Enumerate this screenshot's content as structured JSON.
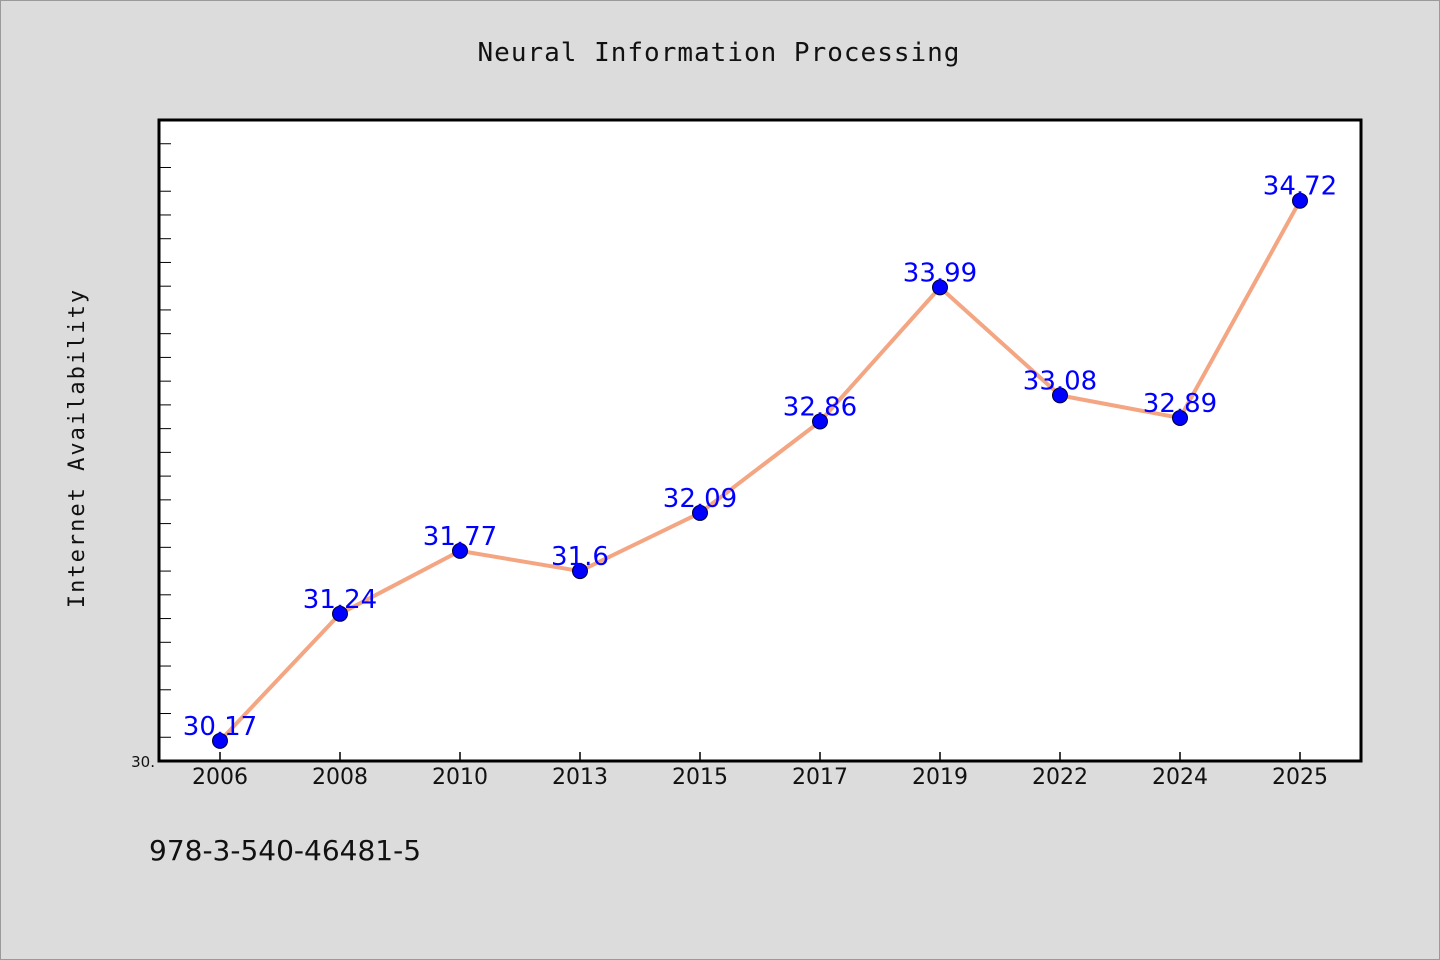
{
  "chart_data": {
    "type": "line",
    "title": "Neural Information Processing",
    "ylabel": "Internet Availability",
    "xlabel": "",
    "categories": [
      "2006",
      "2008",
      "2010",
      "2013",
      "2015",
      "2017",
      "2019",
      "2022",
      "2024",
      "2025"
    ],
    "series": [
      {
        "values": [
          30.17,
          31.24,
          31.77,
          31.6,
          32.09,
          32.86,
          33.99,
          33.08,
          32.89,
          34.72
        ],
        "labels": [
          "30.17",
          "31.24",
          "31.77",
          "31.6",
          "32.09",
          "32.86",
          "33.99",
          "33.08",
          "32.89",
          "34.72"
        ],
        "line_color": "#f4a582",
        "marker_color": "#0000ff",
        "label_color": "#0000ff"
      }
    ],
    "ylim": [
      30.0,
      35.4
    ],
    "ytick_labels": [
      {
        "value": 30.0,
        "label": "30."
      }
    ],
    "grid": false,
    "legend": "none",
    "plot_background": "#ffffff",
    "page_background": "#dcdcdc"
  },
  "footer": {
    "code": "978-3-540-46481-5"
  }
}
